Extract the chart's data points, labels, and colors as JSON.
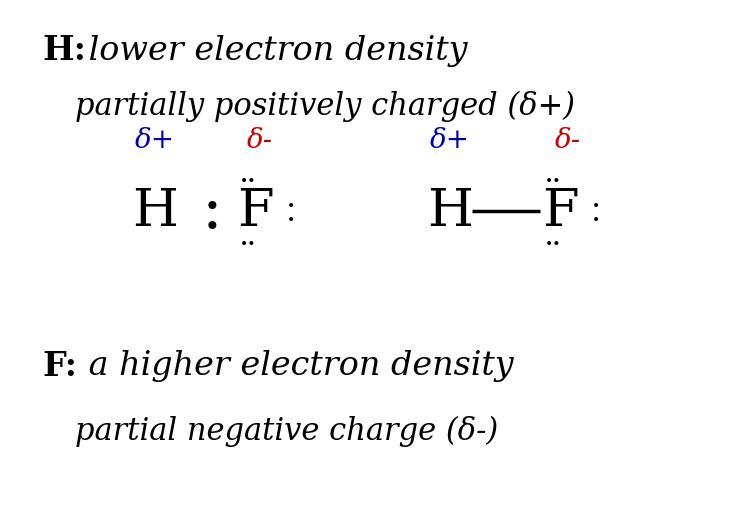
{
  "bg_color": "#ffffff",
  "line1_bold": "H:",
  "line1_italic": " lower electron density",
  "line2_italic": "partially positively charged (δ+)",
  "delta_plus": "δ+",
  "delta_minus": "δ-",
  "line4_bold": "F:",
  "line4_italic": " a higher electron density",
  "line5_italic": "partial negative charge (δ-)",
  "color_black": "#000000",
  "color_blue": "#0000bb",
  "color_red": "#cc0000",
  "color_white": "#ffffff",
  "fs_heading": 24,
  "fs_subheading": 22,
  "fs_mol": 38,
  "fs_delta": 20,
  "fs_dot": 10
}
